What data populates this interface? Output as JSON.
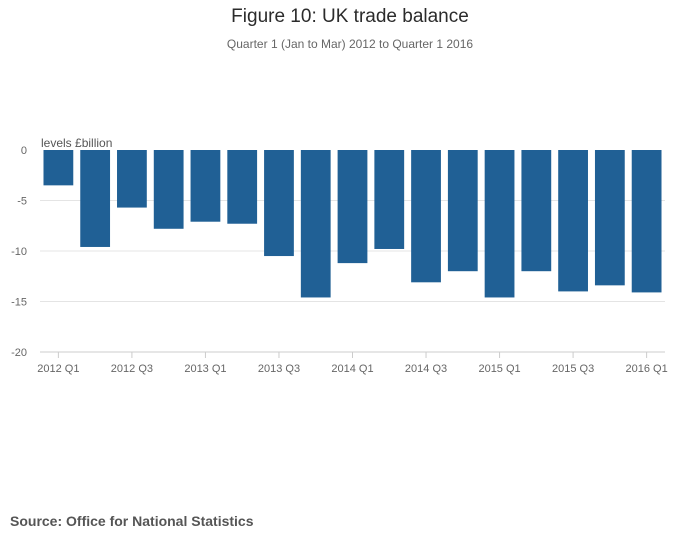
{
  "chart_data": {
    "type": "bar",
    "title": "Figure 10: UK trade balance",
    "subtitle": "Quarter 1 (Jan to Mar) 2012 to Quarter 1 2016",
    "ylabel": "levels £billion",
    "xlabel": "",
    "ylim": [
      -20,
      0
    ],
    "yticks": [
      0,
      -5,
      -10,
      -15,
      -20
    ],
    "grid": true,
    "legend": "none",
    "bar_color": "#206095",
    "categories": [
      "2012 Q1",
      "2012 Q2",
      "2012 Q3",
      "2012 Q4",
      "2013 Q1",
      "2013 Q2",
      "2013 Q3",
      "2013 Q4",
      "2014 Q1",
      "2014 Q2",
      "2014 Q3",
      "2014 Q4",
      "2015 Q1",
      "2015 Q2",
      "2015 Q3",
      "2015 Q4",
      "2016 Q1"
    ],
    "xtick_labels": [
      "2012 Q1",
      "2012 Q3",
      "2013 Q1",
      "2013 Q3",
      "2014 Q1",
      "2014 Q3",
      "2015 Q1",
      "2015 Q3",
      "2016 Q1"
    ],
    "values": [
      -3.5,
      -9.6,
      -5.7,
      -7.8,
      -7.1,
      -7.3,
      -10.5,
      -14.6,
      -11.2,
      -9.8,
      -13.1,
      -12.0,
      -14.6,
      -12.0,
      -14.0,
      -13.4,
      -14.1
    ]
  },
  "footer": {
    "source": "Source: Office for National Statistics"
  }
}
